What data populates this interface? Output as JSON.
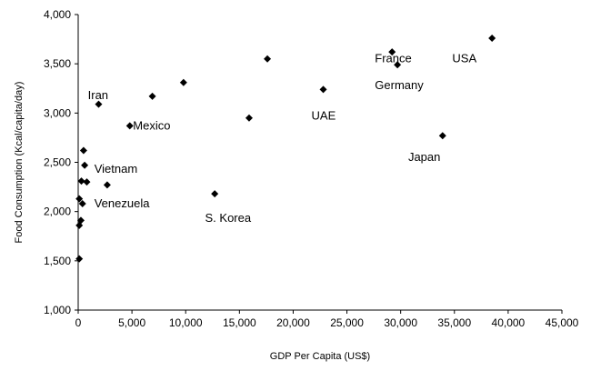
{
  "chart_data": {
    "type": "scatter",
    "title": "",
    "xlabel": "GDP Per Capita (US$)",
    "ylabel": "Food Consumption (Kcal/capita/day)",
    "xlim": [
      0,
      45000
    ],
    "ylim": [
      1000,
      4000
    ],
    "x_ticks": [
      0,
      5000,
      10000,
      15000,
      20000,
      25000,
      30000,
      35000,
      40000,
      45000
    ],
    "y_ticks": [
      1000,
      1500,
      2000,
      2500,
      3000,
      3500,
      4000
    ],
    "x_tick_labels": [
      "0",
      "5,000",
      "10,000",
      "15,000",
      "20,000",
      "25,000",
      "30,000",
      "35,000",
      "40,000",
      "45,000"
    ],
    "y_tick_labels": [
      "1,000",
      "1,500",
      "2,000",
      "2,500",
      "3,000",
      "3,500",
      "4,000"
    ],
    "grid": false,
    "marker": "diamond",
    "marker_color": "#000000",
    "series": [
      {
        "points": [
          {
            "x": 100,
            "y": 1520
          },
          {
            "x": 100,
            "y": 1860
          },
          {
            "x": 250,
            "y": 1910
          },
          {
            "x": 400,
            "y": 2080
          },
          {
            "x": 100,
            "y": 2130
          },
          {
            "x": 300,
            "y": 2310
          },
          {
            "x": 800,
            "y": 2300
          },
          {
            "x": 600,
            "y": 2470
          },
          {
            "x": 500,
            "y": 2620
          },
          {
            "x": 2700,
            "y": 2270
          },
          {
            "x": 1900,
            "y": 3090
          },
          {
            "x": 4800,
            "y": 2870
          },
          {
            "x": 6900,
            "y": 3170
          },
          {
            "x": 9800,
            "y": 3310
          },
          {
            "x": 12700,
            "y": 2180
          },
          {
            "x": 15900,
            "y": 2950
          },
          {
            "x": 17600,
            "y": 3550
          },
          {
            "x": 22800,
            "y": 3240
          },
          {
            "x": 29200,
            "y": 3620
          },
          {
            "x": 29700,
            "y": 3490
          },
          {
            "x": 33900,
            "y": 2770
          },
          {
            "x": 38500,
            "y": 3760
          }
        ]
      }
    ],
    "annotations": [
      {
        "text": "Iran",
        "x": 900,
        "y": 3190
      },
      {
        "text": "Mexico",
        "x": 5100,
        "y": 2880
      },
      {
        "text": "Vietnam",
        "x": 1500,
        "y": 2440
      },
      {
        "text": "Venezuela",
        "x": 1500,
        "y": 2090
      },
      {
        "text": "S. Korea",
        "x": 11800,
        "y": 1940
      },
      {
        "text": "UAE",
        "x": 21700,
        "y": 2980
      },
      {
        "text": "France",
        "x": 27600,
        "y": 3560
      },
      {
        "text": "Germany",
        "x": 27600,
        "y": 3290
      },
      {
        "text": "USA",
        "x": 34800,
        "y": 3560
      },
      {
        "text": "Japan",
        "x": 30700,
        "y": 2560
      }
    ]
  }
}
